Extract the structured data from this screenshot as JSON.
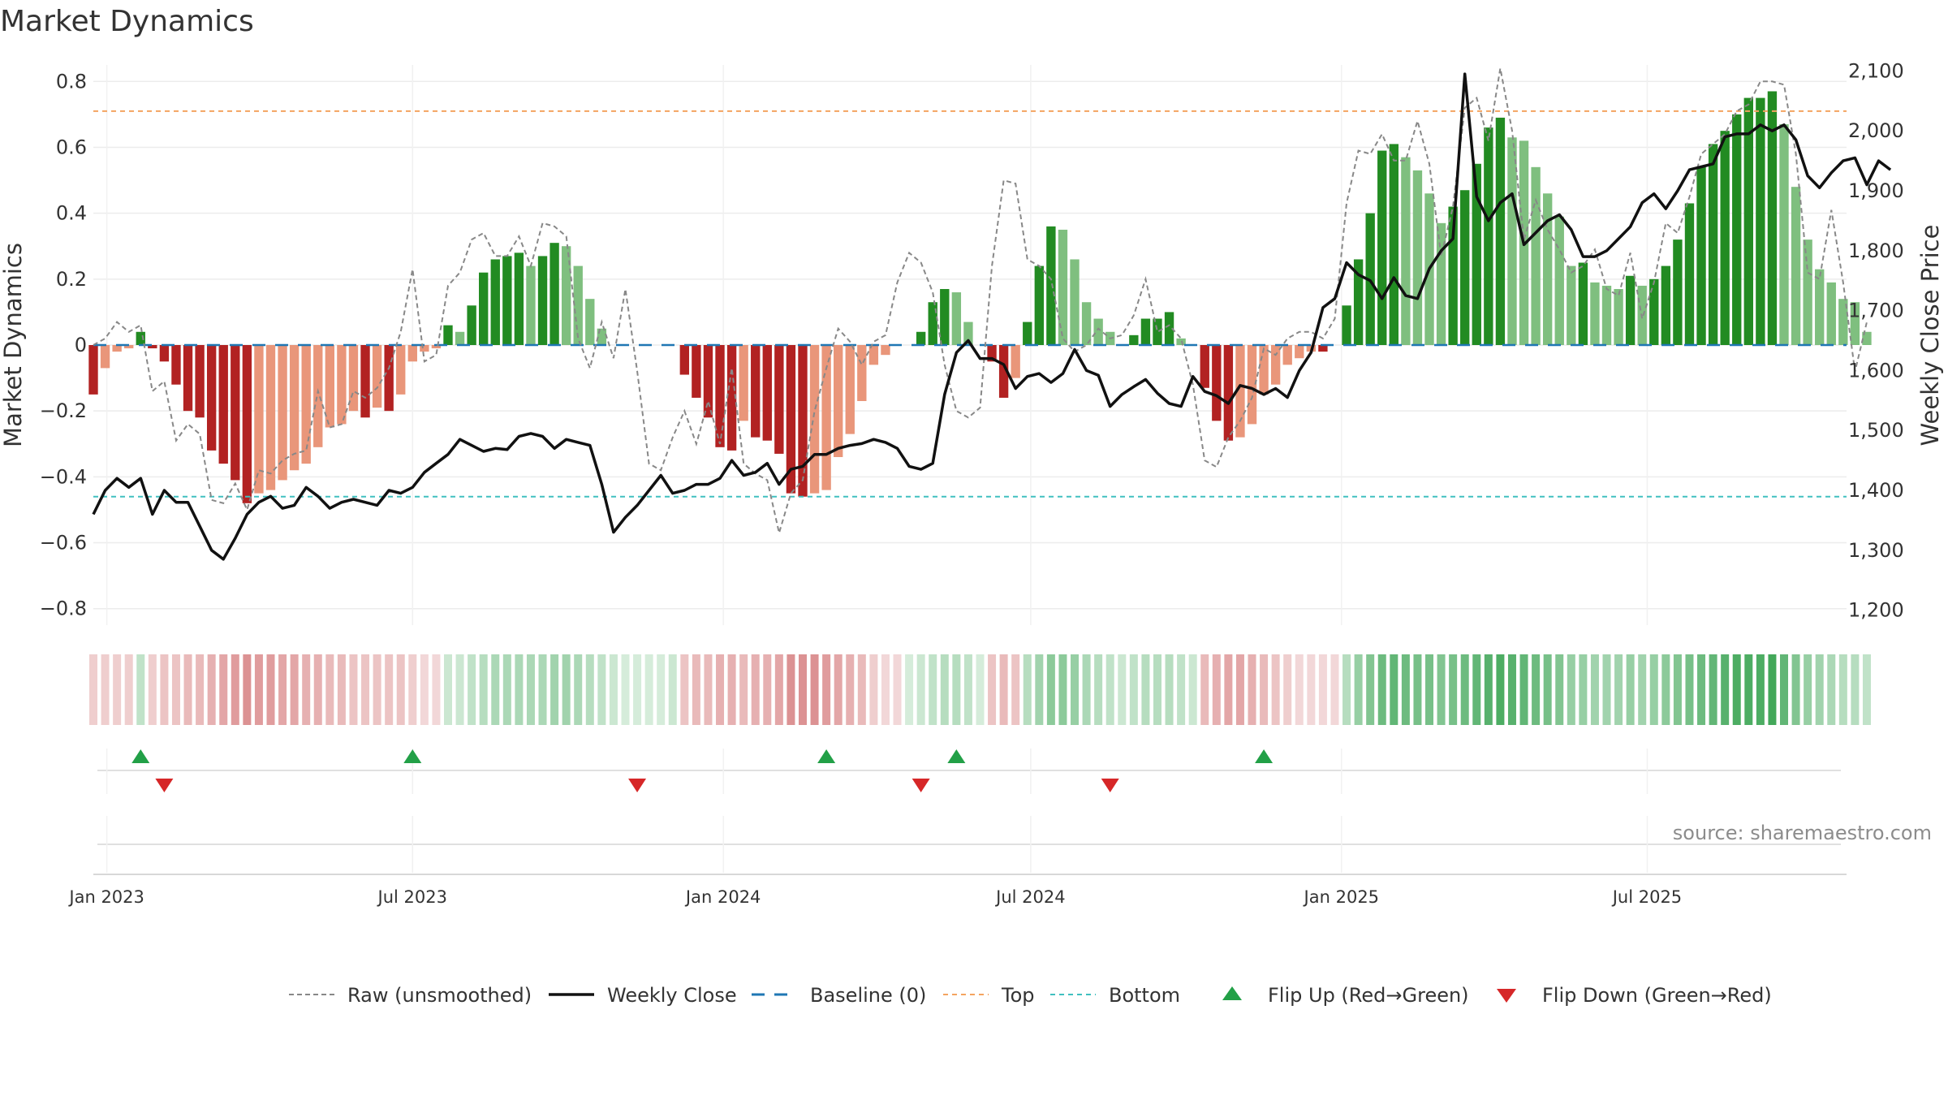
{
  "title": "Market Dynamics",
  "source_note": "source: sharemaestro.com",
  "colors": {
    "strong_red": "#b22222",
    "light_red": "#e9967a",
    "strong_green": "#228b22",
    "light_green": "#7fbf7f",
    "raw_line": "#888888",
    "close_line": "#111111",
    "baseline": "#1f77b4",
    "top": "#f4a460",
    "bottom": "#40c0c0",
    "flip_up": "#22a047",
    "flip_down": "#d62728"
  },
  "chart_data": {
    "type": "bar+line",
    "title": "Market Dynamics",
    "ylabel_left": "Market Dynamics",
    "ylabel_right": "Weekly Close Price",
    "ylim_left": [
      -0.85,
      0.85
    ],
    "ylim_right": [
      1175,
      2110
    ],
    "y_ticks_left": [
      -0.8,
      -0.6,
      -0.4,
      -0.2,
      0,
      0.2,
      0.4,
      0.6,
      0.8
    ],
    "y_tick_labels_left": [
      "−0.8",
      "−0.6",
      "−0.4",
      "−0.2",
      "0",
      "0.2",
      "0.4",
      "0.6",
      "0.8"
    ],
    "y_ticks_right": [
      1200,
      1300,
      1400,
      1500,
      1600,
      1700,
      1800,
      1900,
      2000,
      2100
    ],
    "y_tick_labels_right": [
      "1,200",
      "1,300",
      "1,400",
      "1,500",
      "1,600",
      "1,700",
      "1,800",
      "1,900",
      "2,000",
      "2,100"
    ],
    "x_start": "2022-12-24",
    "x_end": "2025-10-27",
    "x_ticks": [
      "2023-01-01",
      "2023-07-01",
      "2024-01-01",
      "2024-07-01",
      "2025-01-01",
      "2025-07-01"
    ],
    "x_tick_labels": [
      "Jan 2023",
      "Jul 2023",
      "Jan 2024",
      "Jul 2024",
      "Jan 2025",
      "Jul 2025"
    ],
    "first_week": "2022-12-24",
    "top_level": 0.71,
    "bottom_level": -0.46,
    "baseline_level": 0,
    "dynamics": [
      -0.15,
      -0.07,
      -0.02,
      -0.01,
      0.04,
      -0.01,
      -0.05,
      -0.12,
      -0.2,
      -0.22,
      -0.32,
      -0.36,
      -0.41,
      -0.48,
      -0.45,
      -0.44,
      -0.41,
      -0.38,
      -0.36,
      -0.31,
      -0.25,
      -0.24,
      -0.2,
      -0.22,
      -0.19,
      -0.2,
      -0.15,
      -0.05,
      -0.02,
      -0.01,
      0.06,
      0.04,
      0.12,
      0.22,
      0.26,
      0.27,
      0.28,
      0.24,
      0.27,
      0.31,
      0.3,
      0.24,
      0.14,
      0.05,
      0,
      0,
      0,
      0,
      0,
      0,
      -0.09,
      -0.16,
      -0.22,
      -0.31,
      -0.32,
      -0.23,
      -0.28,
      -0.29,
      -0.33,
      -0.45,
      -0.46,
      -0.45,
      -0.44,
      -0.34,
      -0.27,
      -0.17,
      -0.06,
      -0.03,
      0,
      0,
      0.04,
      0.13,
      0.17,
      0.16,
      0.07,
      0,
      -0.05,
      -0.16,
      -0.1,
      0.07,
      0.24,
      0.36,
      0.35,
      0.26,
      0.13,
      0.08,
      0.04,
      0,
      0.03,
      0.08,
      0.08,
      0.1,
      0.02,
      0,
      -0.13,
      -0.23,
      -0.29,
      -0.28,
      -0.24,
      -0.15,
      -0.12,
      -0.06,
      -0.04,
      -0.02,
      -0.02,
      0,
      0.12,
      0.26,
      0.4,
      0.59,
      0.61,
      0.57,
      0.53,
      0.46,
      0.37,
      0.42,
      0.47,
      0.55,
      0.66,
      0.69,
      0.63,
      0.62,
      0.54,
      0.46,
      0.39,
      0.24,
      0.25,
      0.19,
      0.18,
      0.17,
      0.21,
      0.18,
      0.2,
      0.24,
      0.32,
      0.43,
      0.54,
      0.61,
      0.65,
      0.7,
      0.75,
      0.75,
      0.77,
      0.67,
      0.48,
      0.32,
      0.23,
      0.19,
      0.14,
      0.13,
      0.04
    ],
    "raw_unsmoothed": [
      0,
      0.02,
      0.07,
      0.04,
      0.06,
      -0.14,
      -0.11,
      -0.29,
      -0.24,
      -0.27,
      -0.47,
      -0.48,
      -0.42,
      -0.5,
      -0.38,
      -0.39,
      -0.35,
      -0.33,
      -0.32,
      -0.14,
      -0.25,
      -0.24,
      -0.14,
      -0.16,
      -0.13,
      -0.07,
      0.04,
      0.23,
      -0.05,
      -0.03,
      0.18,
      0.22,
      0.32,
      0.34,
      0.27,
      0.27,
      0.33,
      0.24,
      0.37,
      0.36,
      0.33,
      0.02,
      -0.07,
      0.07,
      -0.04,
      0.17,
      -0.08,
      -0.36,
      -0.38,
      -0.28,
      -0.2,
      -0.3,
      -0.17,
      -0.3,
      -0.07,
      -0.36,
      -0.39,
      -0.41,
      -0.57,
      -0.45,
      -0.41,
      -0.2,
      -0.07,
      0.05,
      0.01,
      -0.06,
      0.01,
      0.03,
      0.19,
      0.28,
      0.25,
      0.16,
      -0.06,
      -0.2,
      -0.22,
      -0.19,
      0.24,
      0.5,
      0.49,
      0.26,
      0.24,
      0.2,
      0.02,
      -0.02,
      0,
      0.05,
      0.02,
      0.03,
      0.09,
      0.2,
      0.04,
      0.06,
      0.02,
      -0.12,
      -0.35,
      -0.37,
      -0.28,
      -0.23,
      -0.16,
      -0.01,
      -0.03,
      0.02,
      0.04,
      0.04,
      0.02,
      0.08,
      0.43,
      0.59,
      0.58,
      0.64,
      0.56,
      0.56,
      0.68,
      0.55,
      0.27,
      0.42,
      0.72,
      0.75,
      0.62,
      0.84,
      0.65,
      0.32,
      0.44,
      0.35,
      0.29,
      0.22,
      0.24,
      0.29,
      0.17,
      0.15,
      0.28,
      0.08,
      0.19,
      0.37,
      0.34,
      0.45,
      0.58,
      0.61,
      0.64,
      0.71,
      0.73,
      0.8,
      0.8,
      0.79,
      0.58,
      0.22,
      0.2,
      0.41,
      0.19,
      -0.08,
      0.07
    ],
    "weekly_close": [
      1360,
      1400,
      1420,
      1405,
      1420,
      1360,
      1400,
      1380,
      1380,
      1340,
      1300,
      1285,
      1320,
      1360,
      1380,
      1390,
      1370,
      1375,
      1405,
      1390,
      1370,
      1380,
      1385,
      1380,
      1375,
      1400,
      1395,
      1405,
      1430,
      1445,
      1460,
      1485,
      1475,
      1465,
      1470,
      1468,
      1490,
      1495,
      1490,
      1470,
      1485,
      1480,
      1475,
      1410,
      1330,
      1355,
      1375,
      1400,
      1425,
      1395,
      1400,
      1410,
      1410,
      1420,
      1450,
      1425,
      1430,
      1445,
      1410,
      1435,
      1440,
      1460,
      1460,
      1470,
      1475,
      1478,
      1485,
      1480,
      1470,
      1440,
      1435,
      1445,
      1560,
      1630,
      1650,
      1620,
      1620,
      1610,
      1570,
      1590,
      1595,
      1580,
      1595,
      1635,
      1600,
      1592,
      1540,
      1560,
      1573,
      1585,
      1562,
      1545,
      1540,
      1590,
      1565,
      1558,
      1545,
      1575,
      1570,
      1560,
      1570,
      1555,
      1600,
      1630,
      1705,
      1720,
      1780,
      1760,
      1750,
      1720,
      1755,
      1725,
      1720,
      1770,
      1800,
      1820,
      2095,
      1890,
      1850,
      1880,
      1895,
      1810,
      1830,
      1850,
      1860,
      1835,
      1790,
      1790,
      1800,
      1820,
      1840,
      1880,
      1895,
      1870,
      1900,
      1935,
      1940,
      1945,
      1990,
      1995,
      1995,
      2010,
      2000,
      2010,
      1985,
      1925,
      1905,
      1930,
      1950,
      1955,
      1910,
      1950,
      1935
    ],
    "heat_intensity": [
      0.25,
      0.25,
      0.25,
      0.25,
      0.3,
      0.25,
      0.3,
      0.3,
      0.35,
      0.35,
      0.4,
      0.45,
      0.5,
      0.55,
      0.5,
      0.5,
      0.45,
      0.45,
      0.4,
      0.4,
      0.35,
      0.35,
      0.3,
      0.3,
      0.3,
      0.3,
      0.3,
      0.25,
      0.2,
      0.2,
      0.25,
      0.25,
      0.3,
      0.35,
      0.4,
      0.4,
      0.4,
      0.4,
      0.4,
      0.45,
      0.45,
      0.4,
      0.35,
      0.3,
      0.25,
      0.2,
      0.2,
      0.2,
      0.2,
      0.25,
      0.3,
      0.35,
      0.35,
      0.4,
      0.4,
      0.35,
      0.4,
      0.4,
      0.45,
      0.55,
      0.55,
      0.55,
      0.5,
      0.45,
      0.4,
      0.35,
      0.25,
      0.2,
      0.2,
      0.2,
      0.25,
      0.3,
      0.35,
      0.35,
      0.3,
      0.2,
      0.3,
      0.35,
      0.3,
      0.35,
      0.45,
      0.55,
      0.55,
      0.5,
      0.4,
      0.35,
      0.3,
      0.25,
      0.3,
      0.35,
      0.35,
      0.35,
      0.3,
      0.25,
      0.35,
      0.4,
      0.45,
      0.45,
      0.4,
      0.35,
      0.3,
      0.25,
      0.2,
      0.2,
      0.2,
      0.2,
      0.35,
      0.5,
      0.6,
      0.7,
      0.75,
      0.7,
      0.65,
      0.65,
      0.6,
      0.65,
      0.7,
      0.75,
      0.8,
      0.85,
      0.8,
      0.75,
      0.7,
      0.65,
      0.6,
      0.5,
      0.5,
      0.45,
      0.45,
      0.45,
      0.5,
      0.45,
      0.5,
      0.55,
      0.6,
      0.65,
      0.7,
      0.75,
      0.8,
      0.85,
      0.85,
      0.85,
      0.9,
      0.75,
      0.6,
      0.5,
      0.45,
      0.4,
      0.35,
      0.35,
      0.3
    ],
    "flips_up": [
      {
        "date": "2023-01-21",
        "value": 0.04
      },
      {
        "date": "2023-07-01",
        "value": 0.06
      },
      {
        "date": "2024-03-02",
        "value": 0.04
      },
      {
        "date": "2024-05-18",
        "value": 0.07
      },
      {
        "date": "2024-11-16",
        "value": 0.12
      }
    ],
    "flips_down": [
      {
        "date": "2023-02-04",
        "value": -0.05
      },
      {
        "date": "2023-11-11",
        "value": -0.09
      },
      {
        "date": "2024-04-27",
        "value": -0.05
      },
      {
        "date": "2024-08-17",
        "value": -0.13
      }
    ],
    "legend": [
      {
        "key": "raw",
        "label": "Raw (unsmoothed)"
      },
      {
        "key": "close",
        "label": "Weekly Close"
      },
      {
        "key": "baseline",
        "label": "Baseline (0)"
      },
      {
        "key": "top",
        "label": "Top"
      },
      {
        "key": "bottom",
        "label": "Bottom"
      },
      {
        "key": "flip_up",
        "label": "Flip Up (Red→Green)"
      },
      {
        "key": "flip_down",
        "label": "Flip Down (Green→Red)"
      }
    ],
    "legend_position": "bottom-center"
  }
}
